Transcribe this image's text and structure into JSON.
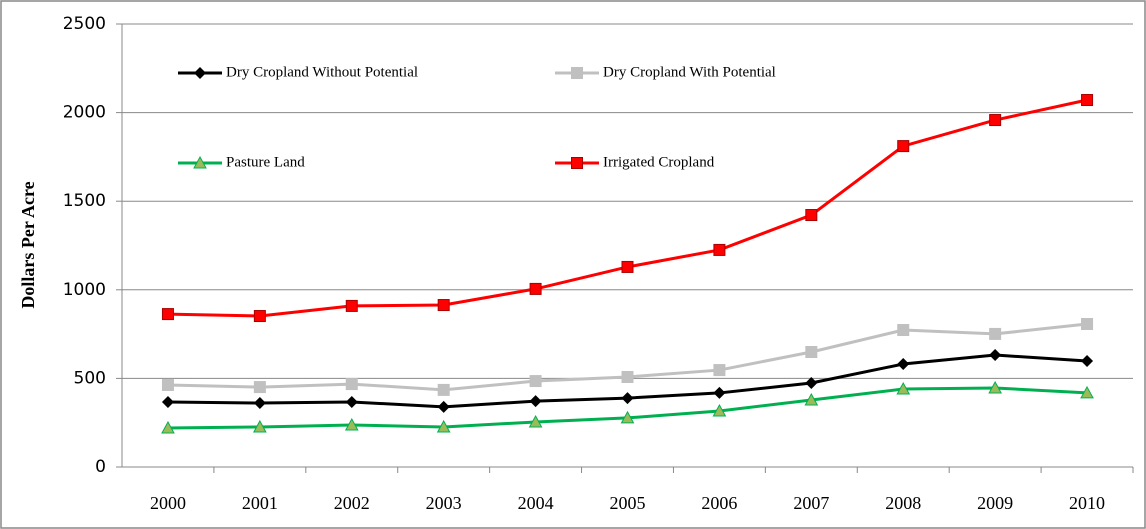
{
  "chart_data": {
    "type": "line",
    "y_label": "Dollars Per Acre",
    "categories": [
      "2000",
      "2001",
      "2002",
      "2003",
      "2004",
      "2005",
      "2006",
      "2007",
      "2008",
      "2009",
      "2010"
    ],
    "series": [
      {
        "name": "Dry Cropland Without  Potential",
        "color": "#000000",
        "marker": "diamond",
        "values": [
          367,
          361,
          367,
          339,
          372,
          389,
          418,
          474,
          581,
          632,
          598
        ]
      },
      {
        "name": "Dry Cropland With Potential",
        "color": "#c0c0c0",
        "marker": "square",
        "values": [
          463,
          451,
          468,
          435,
          485,
          508,
          547,
          649,
          773,
          751,
          807
        ]
      },
      {
        "name": "Pasture Land",
        "color": "#00b050",
        "marker": "triangle",
        "values": [
          220,
          226,
          237,
          226,
          254,
          277,
          316,
          378,
          440,
          446,
          418
        ]
      },
      {
        "name": "Irrigated Cropland",
        "color": "#ff0000",
        "marker": "square",
        "values": [
          863,
          852,
          909,
          914,
          1005,
          1129,
          1225,
          1422,
          1811,
          1958,
          2071
        ]
      }
    ],
    "ylim": [
      0,
      2500
    ],
    "yticks": [
      0,
      500,
      1000,
      1500,
      2000,
      2500
    ],
    "grid": true
  }
}
